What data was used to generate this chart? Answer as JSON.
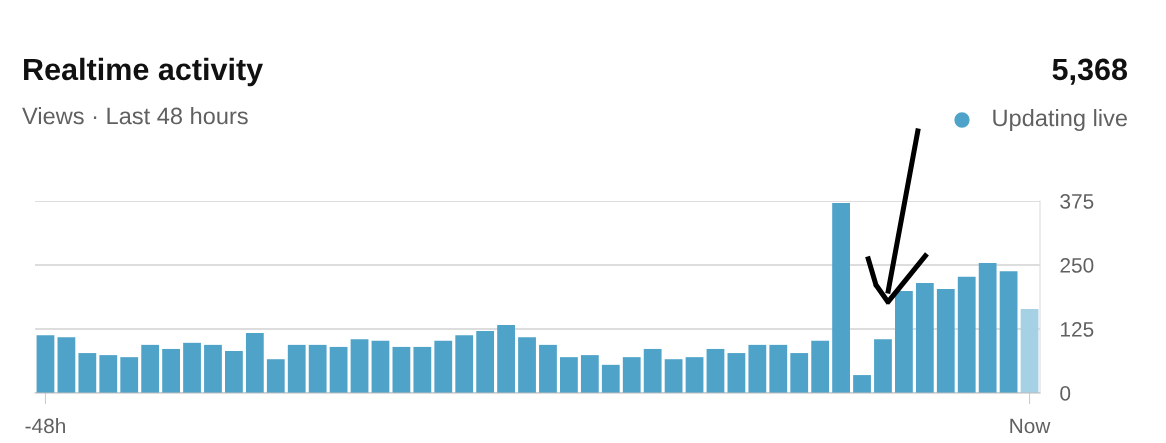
{
  "chart_data": {
    "type": "bar",
    "title": "Realtime activity",
    "subtitle": "Views · Last 48 hours",
    "annotations": [
      "5,368",
      "Updating live"
    ],
    "categories": [
      "-48h",
      null,
      null,
      null,
      null,
      null,
      null,
      null,
      null,
      null,
      null,
      null,
      null,
      null,
      null,
      null,
      null,
      null,
      null,
      null,
      null,
      null,
      null,
      null,
      null,
      null,
      null,
      null,
      null,
      null,
      null,
      null,
      null,
      null,
      null,
      null,
      null,
      null,
      null,
      null,
      null,
      null,
      null,
      null,
      null,
      null,
      null,
      "Now"
    ],
    "values": [
      113,
      109,
      78,
      74,
      70,
      94,
      86,
      98,
      94,
      82,
      117,
      66,
      94,
      94,
      90,
      105,
      102,
      90,
      90,
      102,
      113,
      121,
      133,
      109,
      94,
      70,
      74,
      55,
      70,
      86,
      66,
      70,
      86,
      78,
      94,
      94,
      78,
      102,
      371,
      35,
      105,
      199,
      215,
      203,
      227,
      254,
      238,
      164
    ],
    "colors": [
      "#4fa3c9",
      "#4fa3c9",
      "#4fa3c9",
      "#4fa3c9",
      "#4fa3c9",
      "#4fa3c9",
      "#4fa3c9",
      "#4fa3c9",
      "#4fa3c9",
      "#4fa3c9",
      "#4fa3c9",
      "#4fa3c9",
      "#4fa3c9",
      "#4fa3c9",
      "#4fa3c9",
      "#4fa3c9",
      "#4fa3c9",
      "#4fa3c9",
      "#4fa3c9",
      "#4fa3c9",
      "#4fa3c9",
      "#4fa3c9",
      "#4fa3c9",
      "#4fa3c9",
      "#4fa3c9",
      "#4fa3c9",
      "#4fa3c9",
      "#4fa3c9",
      "#4fa3c9",
      "#4fa3c9",
      "#4fa3c9",
      "#4fa3c9",
      "#4fa3c9",
      "#4fa3c9",
      "#4fa3c9",
      "#4fa3c9",
      "#4fa3c9",
      "#4fa3c9",
      "#4fa3c9",
      "#4fa3c9",
      "#4fa3c9",
      "#4fa3c9",
      "#4fa3c9",
      "#4fa3c9",
      "#4fa3c9",
      "#4fa3c9",
      "#4fa3c9",
      "#a6d0e4"
    ],
    "ylim": [
      0,
      375
    ],
    "yticks": [
      0,
      125,
      250,
      375
    ],
    "grid": "y"
  }
}
